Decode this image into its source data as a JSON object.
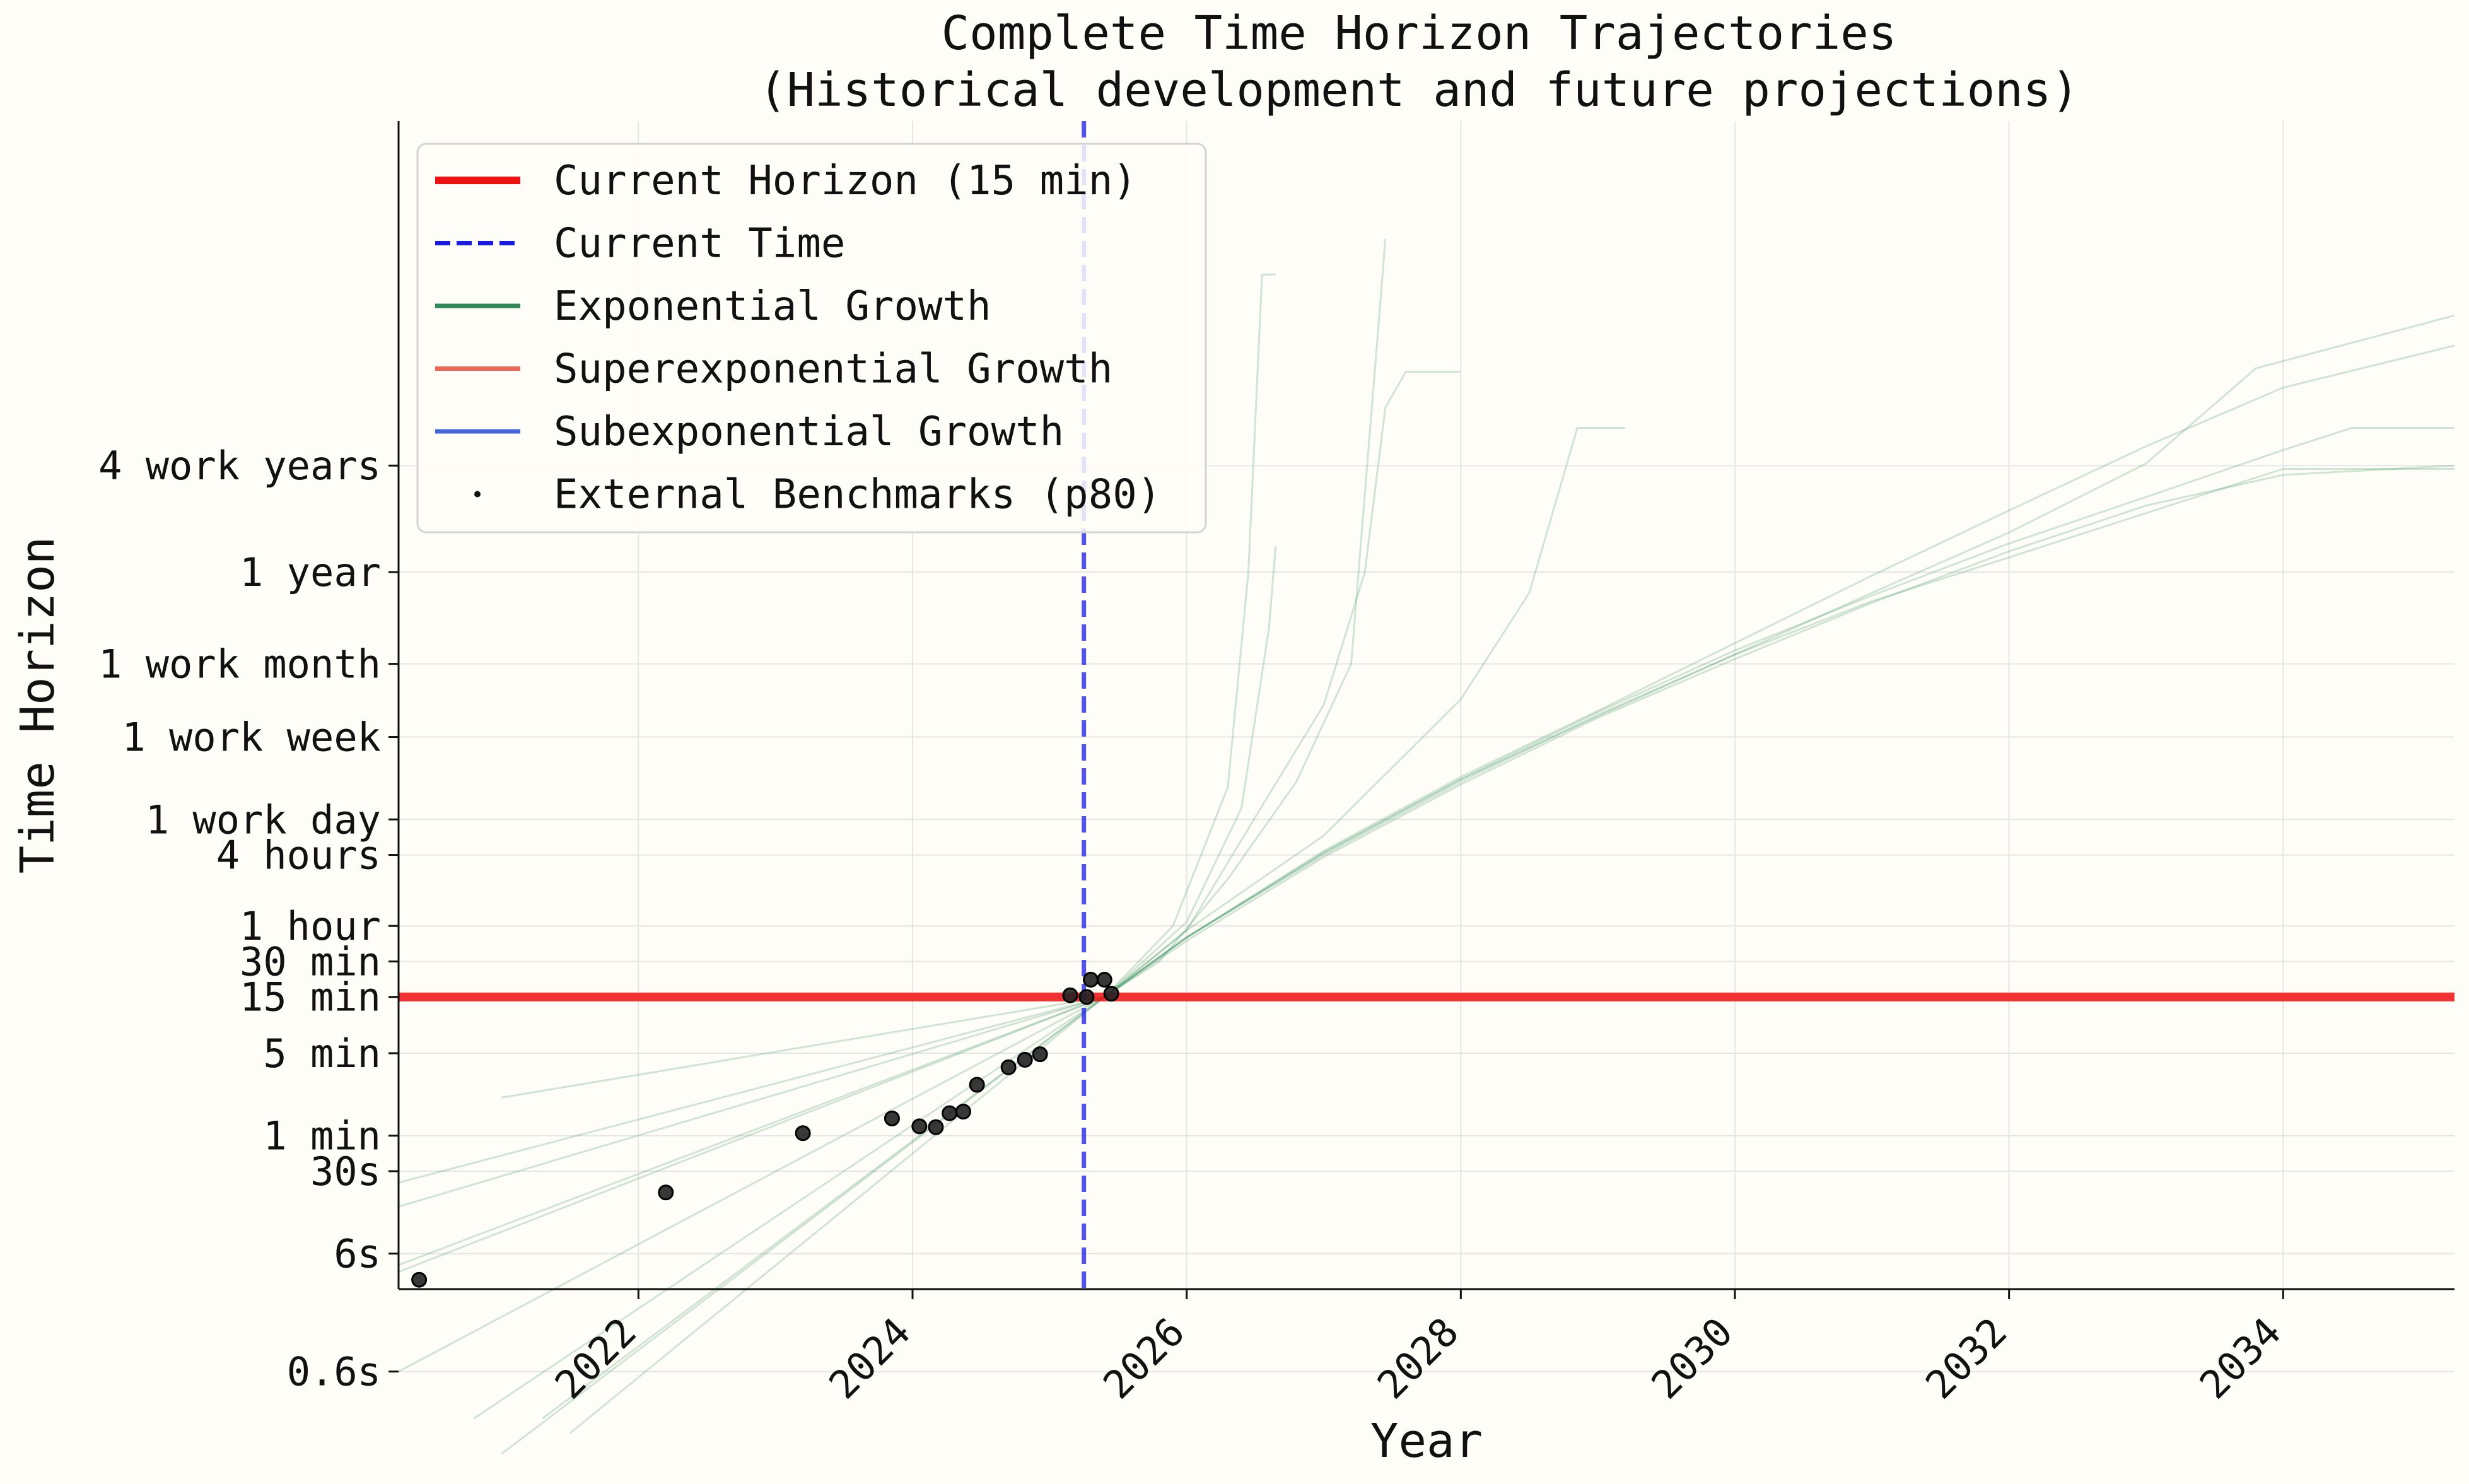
{
  "chart_data": {
    "type": "line",
    "title": "Complete Time Horizon Trajectories",
    "subtitle": "(Historical development and future projections)",
    "xlabel": "Year",
    "ylabel": "Time Horizon",
    "xlim": [
      2020.25,
      2035.25
    ],
    "ylim": [
      0.05,
      400000000
    ],
    "yscale": "log",
    "grid": true,
    "legend_position": "top-left",
    "x_ticks": [
      2022,
      2024,
      2026,
      2028,
      2030,
      2032,
      2034
    ],
    "y_ticks": [
      {
        "label": "0.6s",
        "minutes": 0.01
      },
      {
        "label": "6s",
        "minutes": 0.1
      },
      {
        "label": "30s",
        "minutes": 0.5
      },
      {
        "label": "1 min",
        "minutes": 1
      },
      {
        "label": "5 min",
        "minutes": 5
      },
      {
        "label": "15 min",
        "minutes": 15
      },
      {
        "label": "30 min",
        "minutes": 30
      },
      {
        "label": "1 hour",
        "minutes": 60
      },
      {
        "label": "4 hours",
        "minutes": 240
      },
      {
        "label": "1 work day",
        "minutes": 480
      },
      {
        "label": "1 work week",
        "minutes": 2400
      },
      {
        "label": "1 work month",
        "minutes": 10000
      },
      {
        "label": "1 year",
        "minutes": 60000
      },
      {
        "label": "4 work years",
        "minutes": 480000
      }
    ],
    "legend": [
      {
        "label": "Current Horizon (15 min)",
        "color": "#ee1111",
        "style": "solid-thick"
      },
      {
        "label": "Current Time",
        "color": "#1a1ae6",
        "style": "dashed"
      },
      {
        "label": "Exponential Growth",
        "color": "#2e8b57",
        "style": "solid"
      },
      {
        "label": "Superexponential Growth",
        "color": "#ee6655",
        "style": "solid"
      },
      {
        "label": "Subexponential Growth",
        "color": "#4466dd",
        "style": "solid"
      },
      {
        "label": "External Benchmarks (p80)",
        "color": "#111111",
        "style": "marker"
      }
    ],
    "current_horizon_minutes": 15,
    "current_time_year": 2025.25,
    "benchmarks": [
      {
        "x": 2020.4,
        "y": 0.06
      },
      {
        "x": 2022.2,
        "y": 0.33
      },
      {
        "x": 2023.2,
        "y": 1.05
      },
      {
        "x": 2023.85,
        "y": 1.4
      },
      {
        "x": 2024.05,
        "y": 1.2
      },
      {
        "x": 2024.17,
        "y": 1.18
      },
      {
        "x": 2024.27,
        "y": 1.55
      },
      {
        "x": 2024.37,
        "y": 1.6
      },
      {
        "x": 2024.47,
        "y": 2.7
      },
      {
        "x": 2024.7,
        "y": 3.8
      },
      {
        "x": 2024.82,
        "y": 4.4
      },
      {
        "x": 2024.93,
        "y": 4.9
      },
      {
        "x": 2025.15,
        "y": 15.5
      },
      {
        "x": 2025.27,
        "y": 15.0
      },
      {
        "x": 2025.3,
        "y": 21
      },
      {
        "x": 2025.4,
        "y": 21
      },
      {
        "x": 2025.45,
        "y": 16
      }
    ],
    "series": [
      {
        "color": "#2e8b57",
        "points": [
          [
            2020.25,
            0.08
          ],
          [
            2025.4,
            15
          ],
          [
            2026,
            48
          ],
          [
            2027,
            240
          ],
          [
            2028,
            1000
          ],
          [
            2029,
            3700
          ],
          [
            2030,
            12000
          ],
          [
            2031,
            40000
          ],
          [
            2032,
            130000
          ],
          [
            2033,
            500000
          ],
          [
            2033.8,
            3200000
          ],
          [
            2035.25,
            9000000
          ]
        ]
      },
      {
        "color": "#2e8b57",
        "points": [
          [
            2020.25,
            0.07
          ],
          [
            2025.4,
            15
          ],
          [
            2026,
            48
          ],
          [
            2027,
            250
          ],
          [
            2028,
            1050
          ],
          [
            2029,
            3900
          ],
          [
            2030,
            13000
          ],
          [
            2031,
            38000
          ],
          [
            2032,
            105000
          ],
          [
            2033,
            260000
          ],
          [
            2034,
            650000
          ],
          [
            2034.5,
            1000000
          ],
          [
            2035.25,
            1000000
          ]
        ]
      },
      {
        "color": "#2e8b57",
        "points": [
          [
            2020.25,
            0.4
          ],
          [
            2025.4,
            15
          ],
          [
            2026,
            48
          ],
          [
            2027,
            250
          ],
          [
            2028,
            1050
          ],
          [
            2029,
            3600
          ],
          [
            2030,
            12000
          ],
          [
            2031,
            34000
          ],
          [
            2032,
            80000
          ],
          [
            2033,
            190000
          ],
          [
            2034,
            450000
          ],
          [
            2035.25,
            450000
          ]
        ]
      },
      {
        "color": "#2e8b57",
        "points": [
          [
            2021,
            2.1
          ],
          [
            2025.4,
            15
          ],
          [
            2026,
            48
          ],
          [
            2027,
            260
          ],
          [
            2028,
            1100
          ],
          [
            2029,
            4000
          ],
          [
            2030,
            15000
          ],
          [
            2031,
            56000
          ],
          [
            2032,
            200000
          ],
          [
            2033,
            700000
          ],
          [
            2034,
            2200000
          ],
          [
            2035.25,
            5000000
          ]
        ]
      },
      {
        "color": "#2e8b57",
        "points": [
          [
            2020.25,
            0.01
          ],
          [
            2025.4,
            15
          ],
          [
            2026,
            45
          ],
          [
            2027,
            230
          ],
          [
            2028,
            950
          ],
          [
            2029,
            3500
          ],
          [
            2030,
            11000
          ],
          [
            2031,
            33000
          ],
          [
            2032,
            90000
          ],
          [
            2033,
            220000
          ],
          [
            2034,
            400000
          ],
          [
            2035.25,
            480000
          ]
        ]
      },
      {
        "color": "#2e8b57",
        "points": [
          [
            2020.8,
            0.004
          ],
          [
            2025.4,
            15
          ],
          [
            2026,
            55
          ],
          [
            2026.5,
            500
          ],
          [
            2027,
            4500
          ],
          [
            2027.3,
            60000
          ],
          [
            2027.45,
            1500000
          ],
          [
            2027.6,
            3000000
          ],
          [
            2028,
            3000000
          ]
        ]
      },
      {
        "color": "#2e8b57",
        "points": [
          [
            2021.3,
            0.004
          ],
          [
            2025.4,
            15
          ],
          [
            2025.9,
            60
          ],
          [
            2026.3,
            900
          ],
          [
            2026.45,
            60000
          ],
          [
            2026.55,
            20000000
          ],
          [
            2026.65,
            20000000
          ]
        ]
      },
      {
        "color": "#2e8b57",
        "points": [
          [
            2021,
            0.002
          ],
          [
            2025.4,
            15
          ],
          [
            2026,
            55
          ],
          [
            2027,
            350
          ],
          [
            2028,
            5000
          ],
          [
            2028.5,
            40000
          ],
          [
            2028.85,
            1000000
          ],
          [
            2029.2,
            1000000
          ]
        ]
      },
      {
        "color": "#2e8b57",
        "points": [
          [
            2021.5,
            0.003
          ],
          [
            2025.4,
            15
          ],
          [
            2026,
            65
          ],
          [
            2026.4,
            600
          ],
          [
            2026.6,
            20000
          ],
          [
            2026.65,
            100000
          ]
        ]
      },
      {
        "color": "#2e8b57",
        "points": [
          [
            2020.25,
            0.25
          ],
          [
            2025.4,
            15
          ],
          [
            2025.8,
            30
          ],
          [
            2026.3,
            150
          ],
          [
            2026.8,
            1000
          ],
          [
            2027.2,
            10000
          ],
          [
            2027.45,
            40000000
          ]
        ]
      }
    ]
  }
}
